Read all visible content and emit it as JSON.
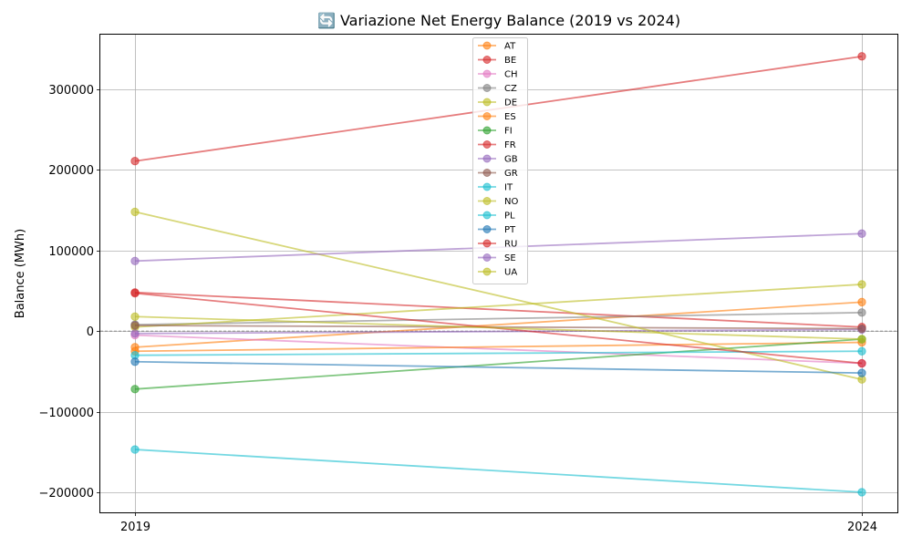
{
  "chart_data": {
    "type": "line",
    "title": "🔄 Variazione Net Energy Balance (2019 vs 2024)",
    "xlabel": "",
    "ylabel": "Balance (MWh)",
    "x": [
      "2019",
      "2024"
    ],
    "ylim": [
      -225000,
      368000
    ],
    "yticks": [
      -200000,
      -100000,
      0,
      100000,
      200000,
      300000
    ],
    "ytick_labels": [
      "−200000",
      "−100000",
      "0",
      "100000",
      "200000",
      "300000"
    ],
    "grid": true,
    "zero_line": "dashed",
    "legend_position": "top-center",
    "series": [
      {
        "name": "AT",
        "color": "#ff7f0e",
        "values": [
          -20000,
          36000
        ]
      },
      {
        "name": "BE",
        "color": "#d62728",
        "values": [
          48000,
          5000
        ]
      },
      {
        "name": "CH",
        "color": "#e377c2",
        "values": [
          -5000,
          -40000
        ]
      },
      {
        "name": "CZ",
        "color": "#7f7f7f",
        "values": [
          8000,
          23000
        ]
      },
      {
        "name": "DE",
        "color": "#bcbd22",
        "values": [
          5000,
          58000
        ]
      },
      {
        "name": "ES",
        "color": "#ff7f0e",
        "values": [
          -25000,
          -14000
        ]
      },
      {
        "name": "FI",
        "color": "#2ca02c",
        "values": [
          -72000,
          -10000
        ]
      },
      {
        "name": "FR",
        "color": "#d62728",
        "values": [
          211000,
          341000
        ]
      },
      {
        "name": "GB",
        "color": "#9467bd",
        "values": [
          -3000,
          2000
        ]
      },
      {
        "name": "GR",
        "color": "#8c564b",
        "values": [
          7000,
          3000
        ]
      },
      {
        "name": "IT",
        "color": "#17becf",
        "values": [
          -147000,
          -200000
        ]
      },
      {
        "name": "NO",
        "color": "#bcbd22",
        "values": [
          148000,
          -60000
        ]
      },
      {
        "name": "PL",
        "color": "#17becf",
        "values": [
          -30000,
          -25000
        ]
      },
      {
        "name": "PT",
        "color": "#1f77b4",
        "values": [
          -38000,
          -52000
        ]
      },
      {
        "name": "RU",
        "color": "#d62728",
        "values": [
          47000,
          -40000
        ]
      },
      {
        "name": "SE",
        "color": "#9467bd",
        "values": [
          87000,
          121000
        ]
      },
      {
        "name": "UA",
        "color": "#bcbd22",
        "values": [
          18000,
          -10000
        ]
      }
    ]
  }
}
